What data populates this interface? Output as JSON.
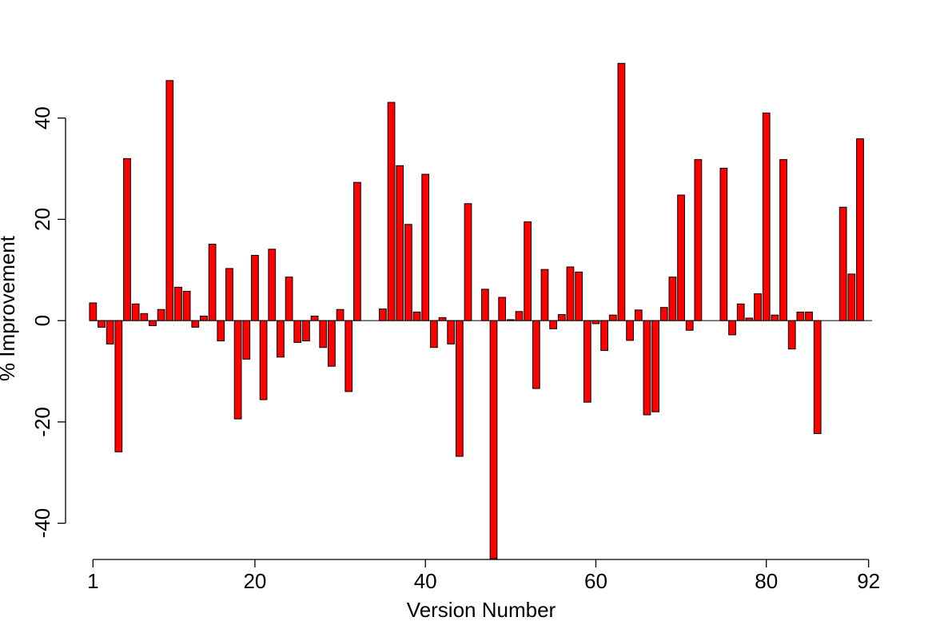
{
  "chart_data": {
    "type": "bar",
    "xlabel": "Version Number",
    "ylabel": "% Improvement",
    "x_ticks": [
      1,
      20,
      40,
      60,
      80,
      92
    ],
    "y_ticks": [
      -40,
      -20,
      0,
      20,
      40
    ],
    "xlim": [
      0.5,
      92.5
    ],
    "ylim": [
      -47,
      51
    ],
    "bar_color": "#ff0000",
    "bar_edge_color": "#000000",
    "grid": false,
    "legend": "none",
    "categories": [
      1,
      2,
      3,
      4,
      5,
      6,
      7,
      8,
      9,
      10,
      11,
      12,
      13,
      14,
      15,
      16,
      17,
      18,
      19,
      20,
      21,
      22,
      23,
      24,
      25,
      26,
      27,
      28,
      29,
      30,
      31,
      32,
      33,
      34,
      35,
      36,
      37,
      38,
      39,
      40,
      41,
      42,
      43,
      44,
      45,
      46,
      47,
      48,
      49,
      50,
      51,
      52,
      53,
      54,
      55,
      56,
      57,
      58,
      59,
      60,
      61,
      62,
      63,
      64,
      65,
      66,
      67,
      68,
      69,
      70,
      71,
      72,
      73,
      74,
      75,
      76,
      77,
      78,
      79,
      80,
      81,
      82,
      83,
      84,
      85,
      86,
      87,
      88,
      89,
      90,
      91,
      92
    ],
    "values": [
      3.5,
      -1.3,
      -4.6,
      -25.9,
      32.0,
      3.3,
      1.4,
      -1.0,
      2.2,
      47.4,
      6.6,
      5.8,
      -1.3,
      0.9,
      15.1,
      -4.0,
      10.3,
      -19.4,
      -7.6,
      12.9,
      -15.6,
      14.1,
      -7.2,
      8.6,
      -4.3,
      -4.0,
      0.9,
      -5.3,
      -9.0,
      2.2,
      -14.0,
      27.3,
      0,
      0,
      2.3,
      43.1,
      30.6,
      19.0,
      1.7,
      28.9,
      -5.3,
      0.6,
      -4.6,
      -26.8,
      23.1,
      0,
      6.2,
      -47.0,
      4.6,
      0.2,
      1.8,
      19.5,
      -13.4,
      10.1,
      -1.6,
      1.2,
      10.6,
      9.6,
      -16.1,
      -0.6,
      -5.9,
      1.1,
      50.8,
      -3.9,
      2.1,
      -18.6,
      -18.0,
      2.6,
      8.6,
      24.8,
      -1.9,
      31.8,
      0,
      0,
      30.1,
      -2.8,
      3.3,
      0.5,
      5.3,
      41.0,
      1.1,
      31.8,
      -5.6,
      1.7,
      1.7,
      -22.3,
      0,
      0,
      22.4,
      9.2,
      35.9,
      0
    ]
  }
}
